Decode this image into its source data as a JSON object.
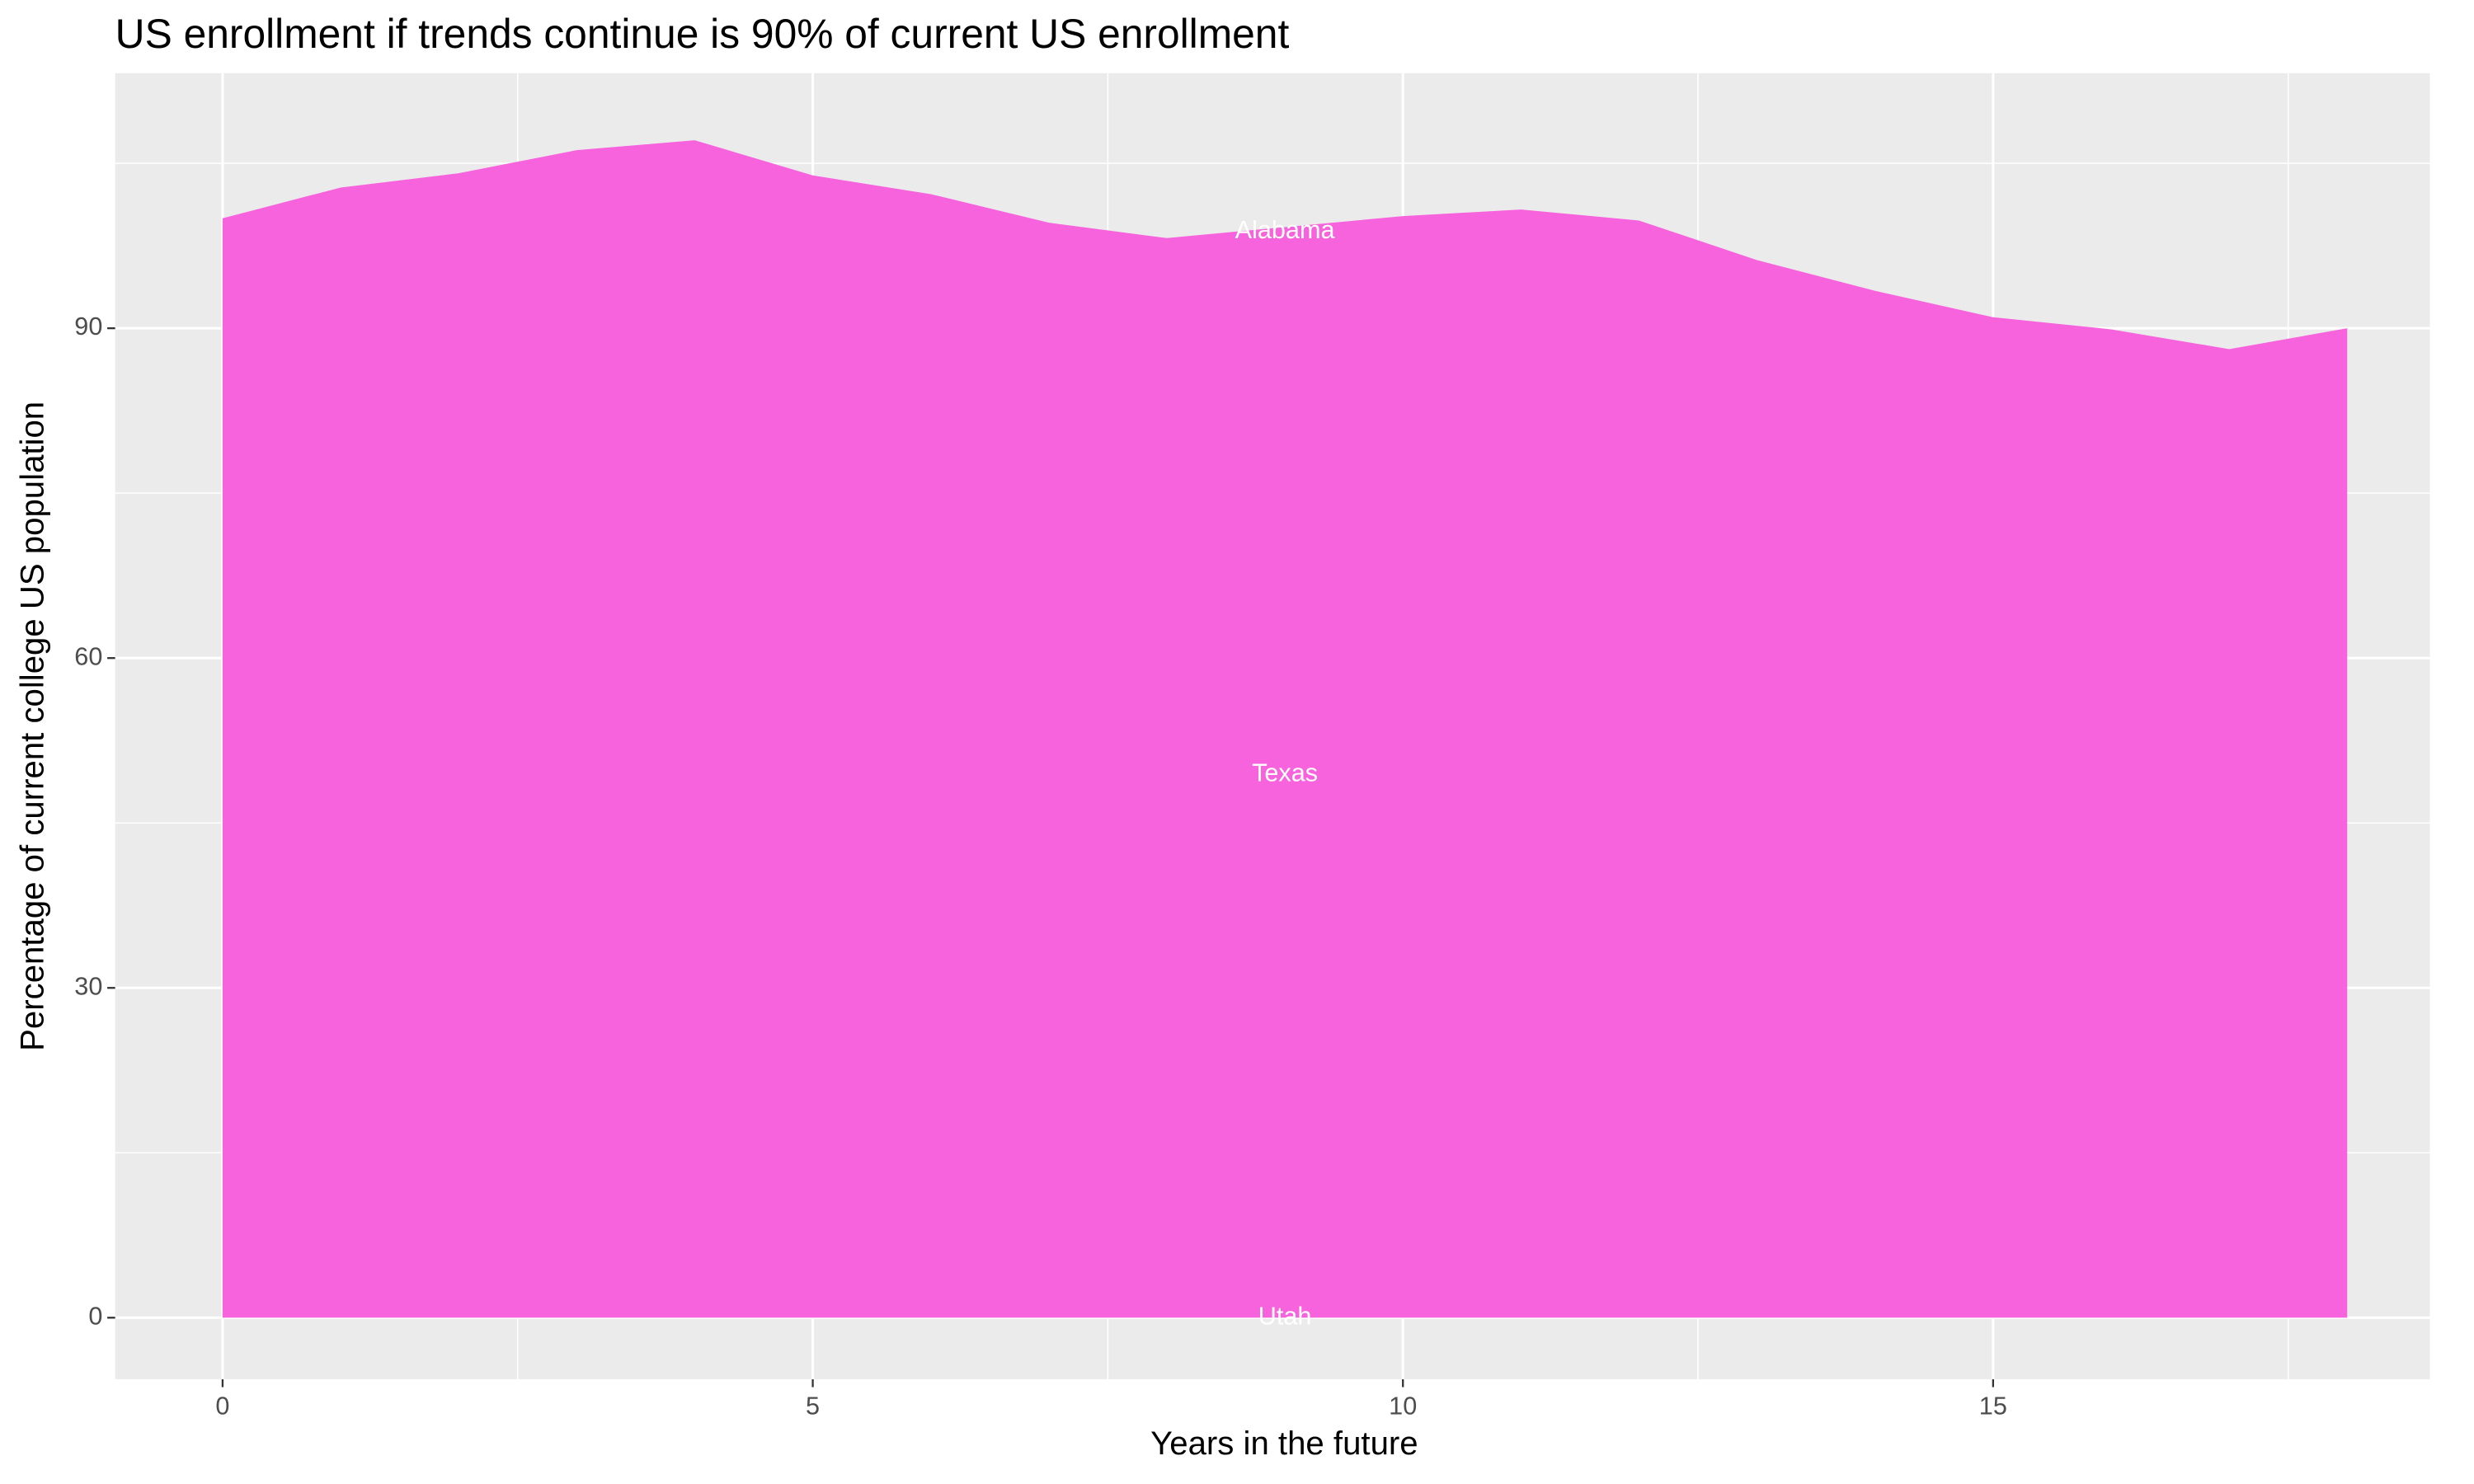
{
  "chart_data": {
    "type": "area",
    "title": "US enrollment if trends continue is 90% of current US enrollment",
    "x_label": "Years in the future",
    "y_label": "Percentage of current college US population",
    "x": [
      0,
      1,
      2,
      3,
      4,
      5,
      6,
      7,
      8,
      9,
      10,
      11,
      12,
      13,
      14,
      15,
      16,
      17,
      18
    ],
    "values": [
      100,
      102.8,
      104.1,
      106.2,
      107.1,
      103.9,
      102.2,
      99.6,
      98.2,
      99.2,
      100.2,
      100.8,
      99.8,
      96.2,
      93.4,
      91,
      89.9,
      88.1,
      90
    ],
    "color": "#f763dc",
    "xlim": [
      -0.91,
      18.7
    ],
    "ylim": [
      -5.6,
      113.2
    ],
    "xticks": [
      0,
      5,
      10,
      15
    ],
    "yticks": [
      0,
      30,
      60,
      90
    ],
    "grid": true,
    "annotations": [
      {
        "text": "Alabama",
        "x": 9,
        "y": 98.8
      },
      {
        "text": "Texas",
        "x": 9,
        "y": 49.4
      },
      {
        "text": "Utah",
        "x": 9,
        "y": 0
      }
    ]
  }
}
